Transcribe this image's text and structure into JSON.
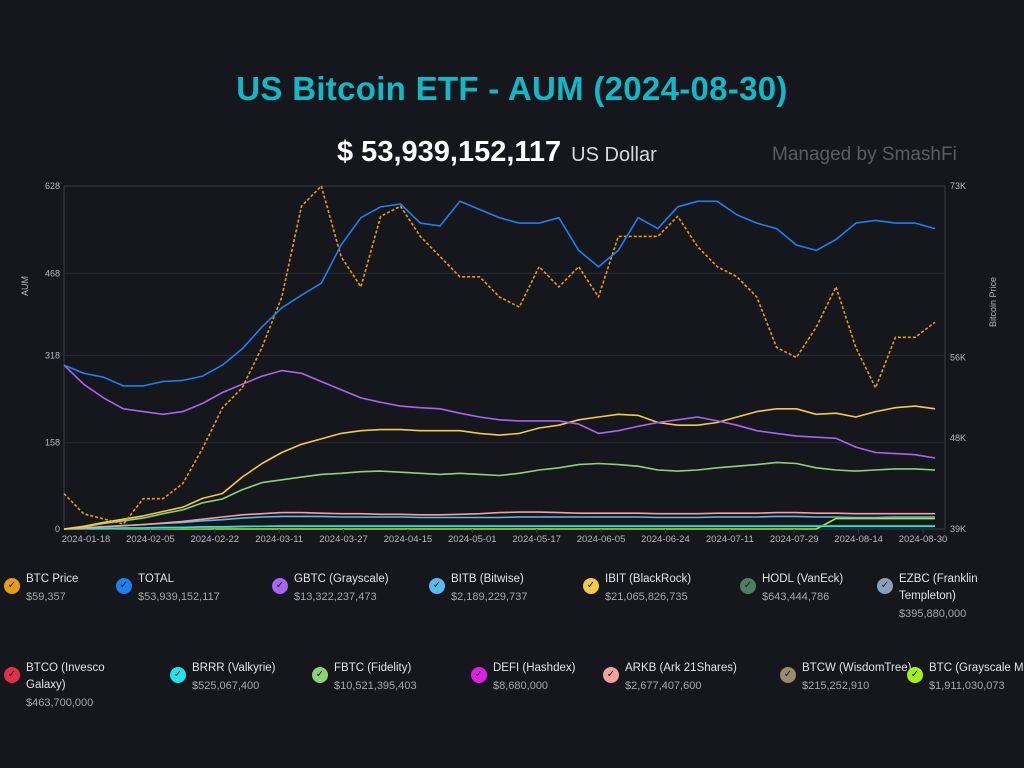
{
  "header": {
    "title": "US Bitcoin ETF - AUM (2024-08-30)",
    "total_value": "$ 53,939,152,117",
    "total_unit": "US Dollar",
    "managed_by": "Managed by SmashFi"
  },
  "legend": [
    {
      "name": "BTC Price",
      "value": "$59,357",
      "color": "#e89a1a"
    },
    {
      "name": "TOTAL",
      "value": "$53,939,152,117",
      "color": "#1d7ff0"
    },
    {
      "name": "GBTC (Grayscale)",
      "value": "$13,322,237,473",
      "color": "#a865f0"
    },
    {
      "name": "BITB (Bitwise)",
      "value": "$2,189,229,737",
      "color": "#5cb8ee"
    },
    {
      "name": "IBIT (BlackRock)",
      "value": "$21,065,826,735",
      "color": "#f2c94c"
    },
    {
      "name": "HODL (VanEck)",
      "value": "$643,444,786",
      "color": "#4f7e64"
    },
    {
      "name": "EZBC (Franklin Templeton)",
      "value": "$395,880,000",
      "color": "#8a9fb8"
    },
    {
      "name": "BTCO (Invesco Galaxy)",
      "value": "$463,700,000",
      "color": "#e0304a"
    },
    {
      "name": "BRRR (Valkyrie)",
      "value": "$525,067,400",
      "color": "#22e3e8"
    },
    {
      "name": "FBTC (Fidelity)",
      "value": "$10,521,395,403",
      "color": "#8fd17b"
    },
    {
      "name": "DEFI (Hashdex)",
      "value": "$8,680,000",
      "color": "#e020e0"
    },
    {
      "name": "ARKB (Ark 21Shares)",
      "value": "$2,677,407,600",
      "color": "#f2a0a0"
    },
    {
      "name": "BTCW (WisdomTree)",
      "value": "$215,252,910",
      "color": "#9a8b6c"
    },
    {
      "name": "BTC (Grayscale Mini)",
      "value": "$1,911,030,073",
      "color": "#a6ee20"
    }
  ],
  "chart_data": {
    "type": "line",
    "x_ticks": [
      "2024-01-18",
      "2024-02-05",
      "2024-02-22",
      "2024-03-11",
      "2024-03-27",
      "2024-04-15",
      "2024-05-01",
      "2024-05-17",
      "2024-06-05",
      "2024-06-24",
      "2024-07-11",
      "2024-07-29",
      "2024-08-14",
      "2024-08-30"
    ],
    "ylabel": "AUM",
    "y2label": "Bitcoin Price",
    "ylim": [
      0,
      628
    ],
    "y_ticks": [
      "0",
      "158",
      "318",
      "468",
      "628"
    ],
    "y2lim": [
      39,
      73
    ],
    "y2_ticks": [
      "39K",
      "48K",
      "56K",
      "73K"
    ],
    "series": [
      {
        "name": "TOTAL",
        "color": "#1d7ff0",
        "axis": "left",
        "dashed": false,
        "values": [
          300,
          285,
          278,
          262,
          262,
          270,
          272,
          280,
          300,
          330,
          370,
          405,
          428,
          450,
          520,
          570,
          590,
          595,
          560,
          555,
          600,
          585,
          570,
          560,
          560,
          570,
          510,
          480,
          510,
          570,
          550,
          590,
          600,
          600,
          575,
          560,
          550,
          520,
          510,
          530,
          560,
          565,
          560,
          560,
          550
        ]
      },
      {
        "name": "GBTC (Grayscale)",
        "color": "#a865f0",
        "axis": "left",
        "dashed": false,
        "values": [
          300,
          265,
          240,
          220,
          215,
          210,
          215,
          230,
          250,
          265,
          280,
          290,
          285,
          270,
          255,
          240,
          232,
          225,
          222,
          220,
          212,
          205,
          200,
          198,
          198,
          198,
          192,
          175,
          180,
          188,
          195,
          200,
          205,
          198,
          190,
          180,
          175,
          170,
          168,
          166,
          150,
          140,
          138,
          136,
          130
        ]
      },
      {
        "name": "IBIT (BlackRock)",
        "color": "#f2c94c",
        "axis": "left",
        "dashed": false,
        "values": [
          0,
          5,
          12,
          18,
          24,
          32,
          40,
          56,
          65,
          95,
          120,
          140,
          155,
          165,
          175,
          180,
          182,
          182,
          180,
          180,
          180,
          175,
          172,
          175,
          185,
          190,
          200,
          205,
          210,
          208,
          195,
          190,
          190,
          195,
          205,
          215,
          220,
          220,
          210,
          212,
          205,
          215,
          222,
          225,
          220
        ]
      },
      {
        "name": "FBTC (Fidelity)",
        "color": "#8fd17b",
        "axis": "left",
        "dashed": false,
        "values": [
          0,
          4,
          10,
          15,
          20,
          28,
          35,
          48,
          55,
          72,
          85,
          90,
          95,
          100,
          102,
          105,
          106,
          104,
          102,
          100,
          102,
          100,
          98,
          102,
          108,
          112,
          118,
          120,
          118,
          115,
          108,
          106,
          108,
          112,
          115,
          118,
          122,
          120,
          112,
          108,
          106,
          108,
          110,
          110,
          108
        ]
      },
      {
        "name": "ARKB (Ark 21Shares)",
        "color": "#f2a0a0",
        "axis": "left",
        "dashed": false,
        "values": [
          0,
          2,
          4,
          6,
          8,
          11,
          14,
          18,
          22,
          26,
          28,
          30,
          30,
          29,
          28,
          28,
          27,
          27,
          26,
          26,
          27,
          28,
          30,
          31,
          31,
          30,
          29,
          29,
          29,
          29,
          28,
          28,
          28,
          29,
          29,
          29,
          30,
          30,
          29,
          29,
          28,
          28,
          28,
          28,
          28
        ]
      },
      {
        "name": "BITB (Bitwise)",
        "color": "#5cb8ee",
        "axis": "left",
        "dashed": false,
        "values": [
          0,
          2,
          4,
          6,
          8,
          10,
          12,
          15,
          17,
          20,
          22,
          23,
          23,
          23,
          22,
          22,
          22,
          22,
          21,
          21,
          21,
          21,
          21,
          22,
          22,
          22,
          22,
          22,
          22,
          22,
          21,
          21,
          21,
          22,
          22,
          22,
          23,
          23,
          22,
          22,
          21,
          21,
          22,
          22,
          22
        ]
      },
      {
        "name": "BTC (Grayscale Mini)",
        "color": "#a6ee20",
        "axis": "left",
        "dashed": false,
        "values": [
          0,
          0,
          0,
          0,
          0,
          0,
          0,
          0,
          0,
          0,
          0,
          0,
          0,
          0,
          0,
          0,
          0,
          0,
          0,
          0,
          0,
          0,
          0,
          0,
          0,
          0,
          0,
          0,
          0,
          0,
          0,
          0,
          0,
          0,
          0,
          0,
          0,
          0,
          0,
          19,
          19,
          19,
          19,
          19,
          19
        ]
      },
      {
        "name": "HODL (VanEck)",
        "color": "#4f7e64",
        "axis": "left",
        "dashed": false,
        "values": [
          0,
          0,
          0,
          1,
          1,
          1,
          2,
          2,
          3,
          4,
          5,
          6,
          6,
          6,
          6,
          6,
          6,
          6,
          6,
          6,
          6,
          6,
          6,
          6,
          6,
          6,
          6,
          6,
          6,
          6,
          6,
          6,
          6,
          6,
          6,
          6,
          6,
          6,
          6,
          6,
          6,
          6,
          6,
          6,
          6
        ]
      },
      {
        "name": "BRRR (Valkyrie)",
        "color": "#22e3e8",
        "axis": "left",
        "dashed": false,
        "values": [
          0,
          1,
          1,
          2,
          2,
          3,
          3,
          4,
          4,
          5,
          5,
          5,
          5,
          5,
          5,
          5,
          5,
          5,
          5,
          5,
          5,
          5,
          5,
          5,
          5,
          5,
          5,
          5,
          5,
          5,
          5,
          5,
          5,
          5,
          5,
          5,
          5,
          5,
          5,
          5,
          5,
          5,
          5,
          5,
          5
        ]
      },
      {
        "name": "BTC Price",
        "color": "#e89a1a",
        "axis": "right",
        "dashed": true,
        "values": [
          42.5,
          40.5,
          40,
          39.5,
          42,
          42,
          43.5,
          47,
          51,
          53,
          57,
          62,
          71,
          73,
          66,
          63,
          70,
          71,
          68,
          66,
          64,
          64,
          62,
          61,
          65,
          63,
          65,
          62,
          68,
          68,
          68,
          70,
          67,
          65,
          64,
          62,
          57,
          56,
          59,
          63,
          57,
          53,
          58,
          58,
          59.5
        ]
      }
    ]
  }
}
